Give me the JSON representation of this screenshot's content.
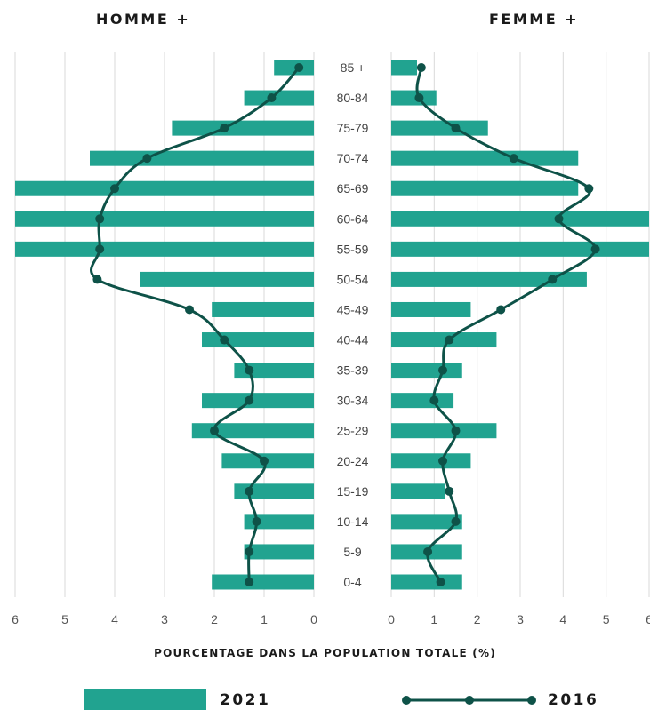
{
  "chart_data": {
    "type": "bar",
    "subtype": "population-pyramid",
    "panels": {
      "left": {
        "title": "HOMME +"
      },
      "right": {
        "title": "FEMME +"
      }
    },
    "categories": [
      "0-4",
      "5-9",
      "10-14",
      "15-19",
      "20-24",
      "25-29",
      "30-34",
      "35-39",
      "40-44",
      "45-49",
      "50-54",
      "55-59",
      "60-64",
      "65-69",
      "70-74",
      "75-79",
      "80-84",
      "85 +"
    ],
    "series": [
      {
        "name": "2021",
        "kind": "bars",
        "color": "#21a390",
        "homme": [
          2.05,
          1.4,
          1.4,
          1.6,
          1.85,
          2.45,
          2.25,
          1.6,
          2.25,
          2.05,
          3.5,
          6.0,
          6.0,
          6.0,
          4.5,
          2.85,
          1.4,
          0.8
        ],
        "femme": [
          1.65,
          1.65,
          1.65,
          1.25,
          1.85,
          2.45,
          1.45,
          1.65,
          2.45,
          1.85,
          4.55,
          6.0,
          6.0,
          4.35,
          4.35,
          2.25,
          1.05,
          0.6
        ]
      },
      {
        "name": "2016",
        "kind": "line",
        "color": "#0e5248",
        "homme": [
          1.3,
          1.3,
          1.15,
          1.3,
          1.0,
          2.0,
          1.3,
          1.3,
          1.8,
          2.5,
          4.35,
          4.3,
          4.3,
          4.0,
          3.35,
          1.8,
          0.85,
          0.3
        ],
        "femme": [
          1.15,
          0.85,
          1.5,
          1.35,
          1.2,
          1.5,
          1.0,
          1.2,
          1.35,
          2.55,
          3.75,
          4.75,
          3.9,
          4.6,
          2.85,
          1.5,
          0.65,
          0.7
        ]
      }
    ],
    "x_axis": {
      "title": "POURCENTAGE DANS LA POPULATION TOTALE (%)",
      "left_ticks": [
        "6",
        "5",
        "4",
        "3",
        "2",
        "1",
        "0"
      ],
      "right_ticks": [
        "0",
        "1",
        "2",
        "3",
        "4",
        "5",
        "6"
      ],
      "range": [
        0,
        6
      ]
    },
    "grid": true,
    "legend": {
      "position": "bottom",
      "items": [
        "2021",
        "2016"
      ]
    }
  }
}
